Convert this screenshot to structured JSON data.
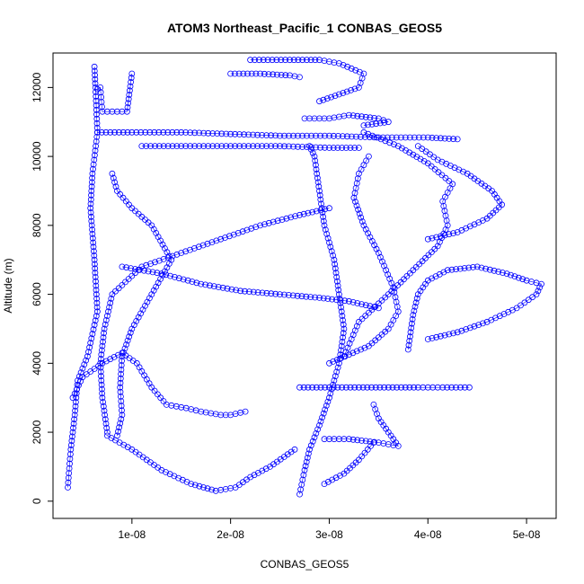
{
  "chart_data": {
    "type": "scatter",
    "title": "ATOM3 Northeast_Pacific_1 CONBAS_GEOS5",
    "xlabel": "CONBAS_GEOS5",
    "ylabel": "Altitude (m)",
    "xlim": [
      2e-09,
      5.3e-08
    ],
    "ylim": [
      -500,
      13000
    ],
    "x_ticks": [
      1e-08,
      2e-08,
      3e-08,
      4e-08,
      5e-08
    ],
    "x_tick_labels": [
      "1e-08",
      "2e-08",
      "3e-08",
      "4e-08",
      "5e-08"
    ],
    "y_ticks": [
      0,
      2000,
      4000,
      6000,
      8000,
      10000,
      12000
    ],
    "y_tick_labels": [
      "0",
      "2000",
      "4000",
      "6000",
      "8000",
      "10000",
      "12000"
    ],
    "marker": "open-circle",
    "series_color": "#0000ff",
    "series": [
      {
        "profiles": [
          [
            [
              3.5e-09,
              400
            ],
            [
              3.8e-09,
              1500
            ],
            [
              4.2e-09,
              2500
            ],
            [
              4.5e-09,
              3500
            ],
            [
              5.5e-09,
              4200
            ],
            [
              6.5e-09,
              5500
            ],
            [
              6.2e-09,
              7000
            ],
            [
              5.8e-09,
              8500
            ],
            [
              6e-09,
              9500
            ],
            [
              6.5e-09,
              10700
            ],
            [
              6.3e-09,
              12000
            ],
            [
              6.2e-09,
              12600
            ]
          ],
          [
            [
              4e-09,
              3000
            ],
            [
              5e-09,
              3600
            ],
            [
              7e-09,
              4000
            ],
            [
              9e-09,
              4300
            ],
            [
              1.05e-08,
              4000
            ],
            [
              1.2e-08,
              3300
            ],
            [
              1.35e-08,
              2800
            ],
            [
              1.55e-08,
              2700
            ],
            [
              1.7e-08,
              2600
            ],
            [
              1.9e-08,
              2500
            ],
            [
              2e-08,
              2500
            ],
            [
              2.15e-08,
              2600
            ]
          ],
          [
            [
              7.5e-09,
              2000
            ],
            [
              7e-09,
              3000
            ],
            [
              6.8e-09,
              4000
            ],
            [
              7.2e-09,
              5000
            ],
            [
              8e-09,
              6000
            ],
            [
              1.1e-08,
              6800
            ],
            [
              1.5e-08,
              7200
            ],
            [
              1.9e-08,
              7600
            ],
            [
              2.3e-08,
              8000
            ],
            [
              2.7e-08,
              8300
            ],
            [
              3e-08,
              8500
            ]
          ],
          [
            [
              8.5e-09,
              1900
            ],
            [
              9e-09,
              2500
            ],
            [
              8.8e-09,
              3300
            ],
            [
              9e-09,
              4200
            ],
            [
              1e-08,
              5000
            ],
            [
              1.2e-08,
              6000
            ],
            [
              1.4e-08,
              7000
            ],
            [
              1.2e-08,
              8000
            ],
            [
              1e-08,
              8500
            ],
            [
              8.5e-09,
              9000
            ],
            [
              8e-09,
              9500
            ]
          ],
          [
            [
              6.5e-09,
              10700
            ],
            [
              1e-08,
              10700
            ],
            [
              1.5e-08,
              10700
            ],
            [
              2e-08,
              10650
            ],
            [
              2.5e-08,
              10600
            ],
            [
              3e-08,
              10600
            ],
            [
              3.5e-08,
              10550
            ],
            [
              4e-08,
              10550
            ],
            [
              4.3e-08,
              10500
            ]
          ],
          [
            [
              1.1e-08,
              10300
            ],
            [
              1.5e-08,
              10300
            ],
            [
              2e-08,
              10300
            ],
            [
              2.5e-08,
              10300
            ],
            [
              3e-08,
              10250
            ],
            [
              3.3e-08,
              10250
            ]
          ],
          [
            [
              6.5e-09,
              11950
            ],
            [
              6.8e-09,
              12000
            ],
            [
              7e-09,
              11300
            ],
            [
              9.5e-09,
              11300
            ],
            [
              1e-08,
              12400
            ]
          ],
          [
            [
              2.2e-08,
              12800
            ],
            [
              2.6e-08,
              12800
            ],
            [
              2.9e-08,
              12800
            ],
            [
              3.1e-08,
              12700
            ],
            [
              3.35e-08,
              12400
            ],
            [
              3.3e-08,
              12000
            ],
            [
              3.1e-08,
              11800
            ],
            [
              2.9e-08,
              11600
            ]
          ],
          [
            [
              2e-08,
              12400
            ],
            [
              2.3e-08,
              12400
            ],
            [
              2.6e-08,
              12350
            ],
            [
              2.7e-08,
              12300
            ]
          ],
          [
            [
              2.75e-08,
              11100
            ],
            [
              3e-08,
              11100
            ],
            [
              3.2e-08,
              11200
            ],
            [
              3.5e-08,
              11100
            ],
            [
              3.6e-08,
              11000
            ],
            [
              3.35e-08,
              10900
            ]
          ],
          [
            [
              2.7e-08,
              200
            ],
            [
              2.75e-08,
              900
            ],
            [
              2.8e-08,
              1500
            ],
            [
              2.9e-08,
              2200
            ],
            [
              3e-08,
              3000
            ],
            [
              3.1e-08,
              4000
            ],
            [
              3.15e-08,
              5000
            ],
            [
              3.1e-08,
              6000
            ],
            [
              3.05e-08,
              7000
            ],
            [
              2.95e-08,
              8000
            ],
            [
              2.9e-08,
              9000
            ],
            [
              2.85e-08,
              10000
            ],
            [
              2.8e-08,
              10300
            ]
          ],
          [
            [
              3.15e-08,
              4200
            ],
            [
              3.3e-08,
              5200
            ],
            [
              3.6e-08,
              6000
            ],
            [
              3.85e-08,
              6700
            ],
            [
              4.1e-08,
              7400
            ],
            [
              4.2e-08,
              8000
            ],
            [
              4.15e-08,
              8700
            ],
            [
              4.25e-08,
              9200
            ],
            [
              4e-08,
              9800
            ],
            [
              3.7e-08,
              10300
            ],
            [
              3.35e-08,
              10700
            ]
          ],
          [
            [
              3e-08,
              4000
            ],
            [
              3.4e-08,
              4500
            ],
            [
              3.6e-08,
              5000
            ],
            [
              3.7e-08,
              5500
            ],
            [
              3.65e-08,
              6200
            ],
            [
              3.5e-08,
              7200
            ],
            [
              3.35e-08,
              8000
            ],
            [
              3.25e-08,
              8800
            ],
            [
              3.3e-08,
              9500
            ],
            [
              3.4e-08,
              10000
            ]
          ],
          [
            [
              3.8e-08,
              4400
            ],
            [
              3.85e-08,
              5400
            ],
            [
              3.9e-08,
              6000
            ],
            [
              4e-08,
              6400
            ],
            [
              4.2e-08,
              6700
            ],
            [
              4.5e-08,
              6800
            ],
            [
              4.8e-08,
              6600
            ],
            [
              5e-08,
              6400
            ],
            [
              5.15e-08,
              6300
            ],
            [
              5.1e-08,
              6000
            ],
            [
              4.9e-08,
              5600
            ],
            [
              4.6e-08,
              5200
            ],
            [
              4.3e-08,
              4900
            ],
            [
              4e-08,
              4700
            ]
          ],
          [
            [
              3.9e-08,
              10300
            ],
            [
              4.1e-08,
              9900
            ],
            [
              4.4e-08,
              9500
            ],
            [
              4.65e-08,
              9000
            ],
            [
              4.75e-08,
              8600
            ],
            [
              4.6e-08,
              8200
            ],
            [
              4.3e-08,
              7800
            ],
            [
              4e-08,
              7600
            ]
          ],
          [
            [
              2.7e-08,
              3300
            ],
            [
              3e-08,
              3300
            ],
            [
              3.3e-08,
              3300
            ],
            [
              3.6e-08,
              3300
            ],
            [
              3.9e-08,
              3300
            ],
            [
              4.15e-08,
              3300
            ],
            [
              4.42e-08,
              3300
            ]
          ],
          [
            [
              2.95e-08,
              1800
            ],
            [
              3.2e-08,
              1800
            ],
            [
              3.5e-08,
              1700
            ],
            [
              3.7e-08,
              1600
            ],
            [
              3.6e-08,
              2000
            ],
            [
              3.5e-08,
              2400
            ],
            [
              3.45e-08,
              2800
            ]
          ],
          [
            [
              2.95e-08,
              500
            ],
            [
              3.15e-08,
              800
            ],
            [
              3.3e-08,
              1200
            ],
            [
              3.45e-08,
              1700
            ]
          ],
          [
            [
              2.65e-08,
              1500
            ],
            [
              2.4e-08,
              1000
            ],
            [
              2.2e-08,
              700
            ],
            [
              2.05e-08,
              400
            ],
            [
              1.85e-08,
              300
            ],
            [
              1.6e-08,
              500
            ],
            [
              1.3e-08,
              900
            ],
            [
              1e-08,
              1500
            ],
            [
              7.5e-09,
              1900
            ]
          ],
          [
            [
              9e-09,
              6800
            ],
            [
              1.3e-08,
              6600
            ],
            [
              1.7e-08,
              6300
            ],
            [
              2.1e-08,
              6100
            ],
            [
              2.5e-08,
              6000
            ],
            [
              2.9e-08,
              5900
            ],
            [
              3.2e-08,
              5800
            ],
            [
              3.5e-08,
              5600
            ]
          ]
        ]
      }
    ]
  }
}
